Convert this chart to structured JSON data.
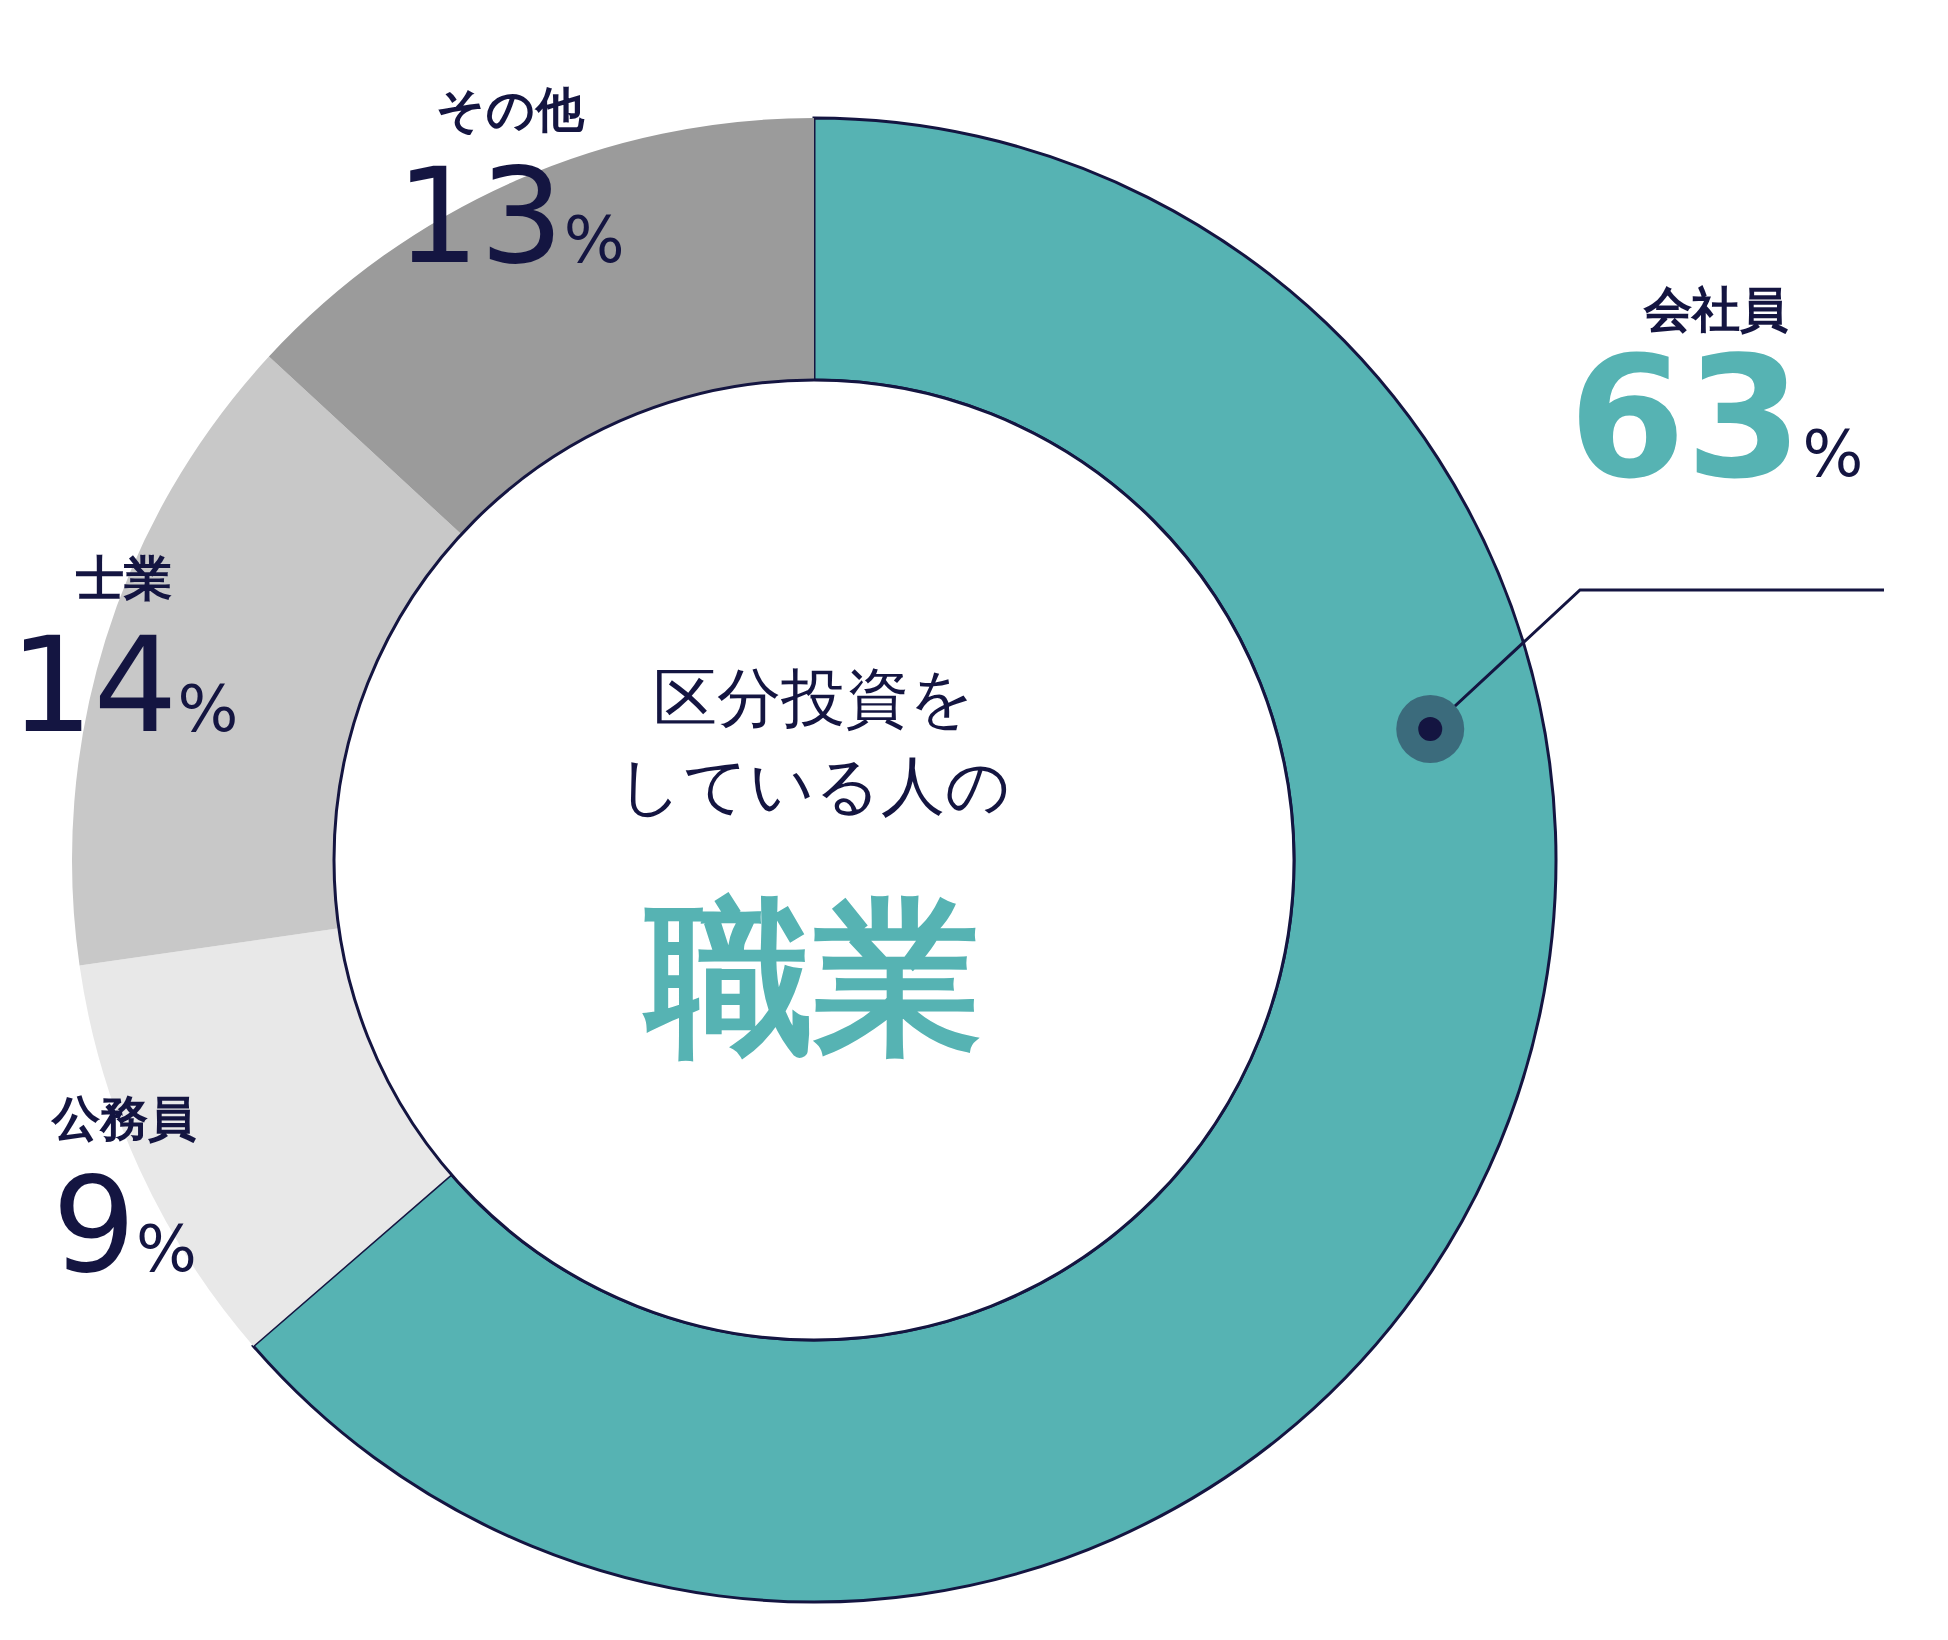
{
  "chart_data": {
    "type": "donut",
    "title": "区分投資をしている人の",
    "subtitle": "職業",
    "categories": [
      "会社員",
      "公務員",
      "士業",
      "その他"
    ],
    "values": [
      63,
      9,
      14,
      13
    ],
    "value_labels": [
      "63%",
      "9%",
      "14%",
      "13%"
    ],
    "colors": [
      "#56b3b3",
      "#e8e8e8",
      "#c8c8c8",
      "#9b9b9b"
    ]
  }
}
